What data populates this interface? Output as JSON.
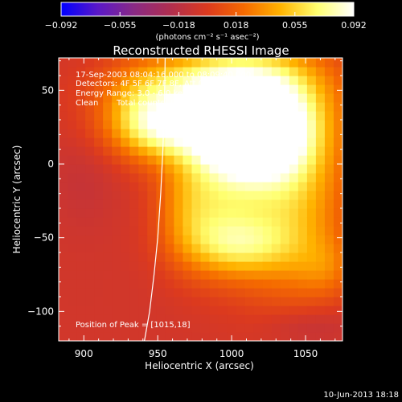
{
  "chart_data": {
    "type": "heatmap",
    "title": "Reconstructed RHESSI Image",
    "xlabel": "Heliocentric X (arcsec)",
    "ylabel": "Heliocentric Y (arcsec)",
    "xlim": [
      883,
      1075
    ],
    "ylim": [
      -120,
      72
    ],
    "x_ticks": [
      900,
      950,
      1000,
      1050
    ],
    "y_ticks": [
      50,
      0,
      -50,
      -100
    ],
    "x_tick_labels": [
      "900",
      "950",
      "1000",
      "1050"
    ],
    "y_tick_labels": [
      "50",
      "0",
      "−50",
      "−100"
    ],
    "colorbar": {
      "range": [
        -0.092,
        0.092
      ],
      "tick_values": [
        -0.092,
        -0.055,
        -0.018,
        0.018,
        0.055,
        0.092
      ],
      "tick_labels": [
        "−0.092",
        "−0.055",
        "−0.018",
        "0.018",
        "0.055",
        "0.092"
      ],
      "unit_text": "(photons cm⁻² s⁻¹ asec⁻²)",
      "colors": [
        "#0000ff",
        "#5a18c8",
        "#8a2a84",
        "#b02e4e",
        "#dc3a1e",
        "#f56a00",
        "#ffb300",
        "#ffff70",
        "#ffffff"
      ]
    },
    "background_level": -0.006,
    "sources": [
      {
        "x": 1013,
        "y": 20,
        "sx": 24,
        "sy": 20,
        "amp": 0.094
      },
      {
        "x": 1005,
        "y": 30,
        "sx": 38,
        "sy": 26,
        "amp": 0.05
      },
      {
        "x": 985,
        "y": 42,
        "sx": 44,
        "sy": 20,
        "amp": 0.05
      },
      {
        "x": 1005,
        "y": 62,
        "sx": 40,
        "sy": 16,
        "amp": 0.035
      },
      {
        "x": 1040,
        "y": -20,
        "sx": 26,
        "sy": 48,
        "amp": 0.055
      },
      {
        "x": 990,
        "y": -30,
        "sx": 22,
        "sy": 30,
        "amp": 0.045
      },
      {
        "x": 1005,
        "y": -55,
        "sx": 26,
        "sy": 14,
        "amp": 0.04
      },
      {
        "x": 950,
        "y": 22,
        "sx": 22,
        "sy": 14,
        "amp": 0.04
      },
      {
        "x": 938,
        "y": 40,
        "sx": 18,
        "sy": 18,
        "amp": 0.025
      },
      {
        "x": 968,
        "y": -30,
        "sx": 14,
        "sy": 24,
        "amp": 0.02
      },
      {
        "x": 1065,
        "y": -70,
        "sx": 14,
        "sy": 14,
        "amp": 0.02
      },
      {
        "x": 1050,
        "y": -110,
        "sx": 22,
        "sy": 10,
        "amp": -0.012
      },
      {
        "x": 900,
        "y": -10,
        "sx": 16,
        "sy": 24,
        "amp": -0.006
      }
    ],
    "limb_curve": {
      "x": [
        955,
        954.5,
        953.5,
        952,
        950,
        947.5,
        944.5,
        941
      ],
      "y": [
        72,
        40,
        10,
        -20,
        -50,
        -75,
        -100,
        -120
      ]
    },
    "annotations": {
      "time_range": "17-Sep-2003 08:04:16.000 to 08:09:40.000",
      "detectors": "Detectors: 4F 5F 6F 7F 8F, Att 0",
      "energy": "Energy Range: 3.0 - 6.0 keV",
      "algorithm": "Clean",
      "counts": "Total counts: 6.04E+04",
      "peak": "Position of Peak = [1015,18]"
    }
  },
  "footer": {
    "timestamp": "10-Jun-2013 18:18"
  }
}
